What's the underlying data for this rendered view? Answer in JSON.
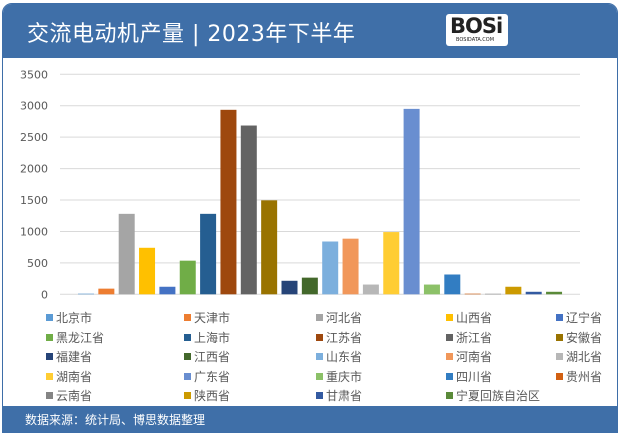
{
  "header": {
    "title": "交流电动机产量 | 2023年下半年",
    "logo_text": "BOSi",
    "logo_sub": "BOSIDATA.COM"
  },
  "footer": {
    "source": "数据来源：统计局、博思数据整理"
  },
  "chart_data": {
    "type": "bar",
    "title": "交流电动机产量 | 2023年下半年",
    "xlabel": "",
    "ylabel": "",
    "ylim": [
      0,
      3500
    ],
    "yticks": [
      0,
      500,
      1000,
      1500,
      2000,
      2500,
      3000,
      3500
    ],
    "grid": true,
    "legend": "bottom",
    "series": [
      {
        "name": "北京市",
        "value": 10,
        "color": "#5b9bd5"
      },
      {
        "name": "天津市",
        "value": 90,
        "color": "#ed7d31"
      },
      {
        "name": "河北省",
        "value": 1280,
        "color": "#a5a5a5"
      },
      {
        "name": "山西省",
        "value": 740,
        "color": "#ffc000"
      },
      {
        "name": "辽宁省",
        "value": 120,
        "color": "#4472c4"
      },
      {
        "name": "黑龙江省",
        "value": 535,
        "color": "#70ad47"
      },
      {
        "name": "上海市",
        "value": 1280,
        "color": "#255e91"
      },
      {
        "name": "江苏省",
        "value": 2935,
        "color": "#9e480e"
      },
      {
        "name": "浙江省",
        "value": 2685,
        "color": "#636363"
      },
      {
        "name": "安徽省",
        "value": 1495,
        "color": "#997300"
      },
      {
        "name": "福建省",
        "value": 215,
        "color": "#264478"
      },
      {
        "name": "江西省",
        "value": 265,
        "color": "#43682b"
      },
      {
        "name": "山东省",
        "value": 840,
        "color": "#7cafdd"
      },
      {
        "name": "河南省",
        "value": 885,
        "color": "#f1975a"
      },
      {
        "name": "湖北省",
        "value": 155,
        "color": "#b7b7b7"
      },
      {
        "name": "湖南省",
        "value": 990,
        "color": "#ffcd33"
      },
      {
        "name": "广东省",
        "value": 2950,
        "color": "#698ed0"
      },
      {
        "name": "重庆市",
        "value": 155,
        "color": "#8cc168"
      },
      {
        "name": "四川省",
        "value": 315,
        "color": "#327dc2"
      },
      {
        "name": "贵州省",
        "value": 10,
        "color": "#d26012"
      },
      {
        "name": "云南省",
        "value": 8,
        "color": "#848484"
      },
      {
        "name": "陕西省",
        "value": 120,
        "color": "#cc9a00"
      },
      {
        "name": "甘肃省",
        "value": 40,
        "color": "#335aa1"
      },
      {
        "name": "宁夏回族自治区",
        "value": 40,
        "color": "#5a8a39"
      }
    ]
  }
}
